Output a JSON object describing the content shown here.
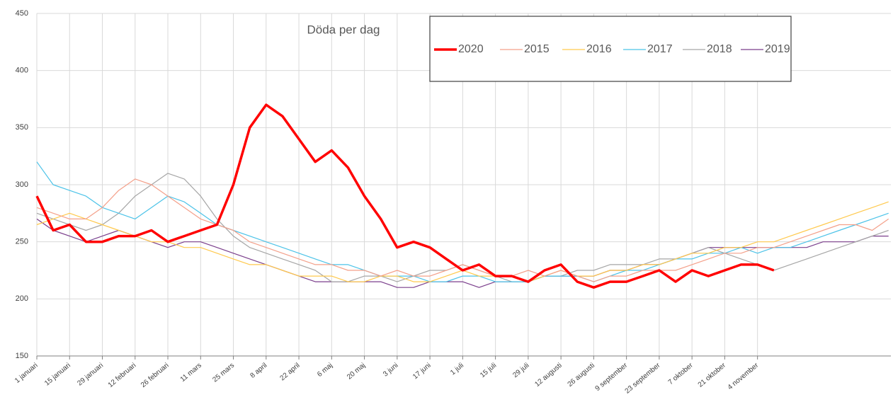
{
  "chart_data": {
    "type": "line",
    "title": "Döda per dag",
    "x": [
      1,
      8,
      15,
      22,
      29,
      36,
      43,
      50,
      57,
      64,
      71,
      78,
      85,
      92,
      99,
      106,
      113,
      120,
      127,
      134,
      141,
      148,
      155,
      162,
      169,
      176,
      183,
      190,
      197,
      204,
      211,
      218,
      225,
      232,
      239,
      246,
      253,
      260,
      267,
      274,
      281,
      288,
      295,
      302,
      309,
      316,
      323,
      330,
      337,
      344,
      351,
      358,
      365
    ],
    "xlim": [
      1,
      366
    ],
    "xticks": [
      {
        "value": 1,
        "label": "1 januari"
      },
      {
        "value": 15,
        "label": "15 januari"
      },
      {
        "value": 29,
        "label": "29 januari"
      },
      {
        "value": 43,
        "label": "12 februari"
      },
      {
        "value": 57,
        "label": "26 februari"
      },
      {
        "value": 71,
        "label": "11 mars"
      },
      {
        "value": 85,
        "label": "25 mars"
      },
      {
        "value": 99,
        "label": "8 april"
      },
      {
        "value": 113,
        "label": "22 april"
      },
      {
        "value": 127,
        "label": "6 maj"
      },
      {
        "value": 141,
        "label": "20 maj"
      },
      {
        "value": 155,
        "label": "3 juni"
      },
      {
        "value": 169,
        "label": "17 juni"
      },
      {
        "value": 183,
        "label": "1 juli"
      },
      {
        "value": 197,
        "label": "15 juli"
      },
      {
        "value": 211,
        "label": "29 juli"
      },
      {
        "value": 225,
        "label": "12 augusti"
      },
      {
        "value": 239,
        "label": "26 augusti"
      },
      {
        "value": 253,
        "label": "9 september"
      },
      {
        "value": 267,
        "label": "23 september"
      },
      {
        "value": 281,
        "label": "7 oktober"
      },
      {
        "value": 295,
        "label": "21 oktober"
      },
      {
        "value": 309,
        "label": "4 november"
      }
    ],
    "ylim": [
      150,
      450
    ],
    "yticks": [
      150,
      200,
      250,
      300,
      350,
      400,
      450
    ],
    "grid": true,
    "series": [
      {
        "name": "2020",
        "color": "#ff0000",
        "line_width": 3.5,
        "values": [
          290,
          260,
          265,
          250,
          250,
          255,
          255,
          260,
          250,
          255,
          260,
          265,
          300,
          350,
          370,
          360,
          340,
          320,
          330,
          315,
          290,
          270,
          245,
          250,
          245,
          235,
          225,
          230,
          220,
          220,
          215,
          225,
          230,
          215,
          210,
          215,
          215,
          220,
          225,
          215,
          225,
          220,
          225,
          230,
          230,
          225,
          null,
          null,
          null,
          null,
          null,
          null,
          null
        ]
      },
      {
        "name": "2015",
        "color": "#f4a08a",
        "line_width": 1.2,
        "values": [
          280,
          275,
          270,
          270,
          280,
          295,
          305,
          300,
          290,
          280,
          270,
          265,
          260,
          250,
          245,
          240,
          235,
          230,
          230,
          225,
          225,
          220,
          225,
          220,
          220,
          225,
          230,
          225,
          220,
          220,
          225,
          220,
          225,
          220,
          215,
          220,
          220,
          225,
          225,
          225,
          230,
          235,
          240,
          240,
          245,
          245,
          250,
          255,
          260,
          265,
          265,
          260,
          270
        ]
      },
      {
        "name": "2016",
        "color": "#ffc94d",
        "line_width": 1.2,
        "values": [
          265,
          270,
          275,
          270,
          265,
          260,
          255,
          250,
          250,
          245,
          245,
          240,
          235,
          230,
          230,
          225,
          220,
          220,
          220,
          215,
          215,
          220,
          220,
          215,
          215,
          220,
          225,
          220,
          220,
          220,
          215,
          220,
          225,
          220,
          220,
          225,
          225,
          230,
          230,
          235,
          240,
          240,
          245,
          245,
          250,
          250,
          255,
          260,
          265,
          270,
          275,
          280,
          285
        ]
      },
      {
        "name": "2017",
        "color": "#4cc3e8",
        "line_width": 1.2,
        "values": [
          320,
          300,
          295,
          290,
          280,
          275,
          270,
          280,
          290,
          285,
          275,
          265,
          260,
          255,
          250,
          245,
          240,
          235,
          230,
          230,
          225,
          220,
          220,
          220,
          215,
          215,
          220,
          220,
          215,
          215,
          215,
          220,
          220,
          220,
          215,
          220,
          225,
          225,
          230,
          235,
          235,
          240,
          240,
          245,
          240,
          245,
          245,
          250,
          255,
          260,
          265,
          270,
          275
        ]
      },
      {
        "name": "2018",
        "color": "#a6a6a6",
        "line_width": 1.2,
        "values": [
          275,
          270,
          265,
          260,
          265,
          275,
          290,
          300,
          310,
          305,
          290,
          270,
          255,
          245,
          240,
          235,
          230,
          225,
          215,
          215,
          220,
          220,
          215,
          220,
          225,
          225,
          230,
          225,
          220,
          215,
          215,
          220,
          220,
          225,
          225,
          230,
          230,
          230,
          235,
          235,
          240,
          245,
          240,
          235,
          230,
          225,
          230,
          235,
          240,
          245,
          250,
          255,
          260
        ]
      },
      {
        "name": "2019",
        "color": "#7b3f8c",
        "line_width": 1.2,
        "values": [
          270,
          260,
          255,
          250,
          255,
          260,
          255,
          250,
          245,
          250,
          250,
          245,
          240,
          235,
          230,
          225,
          220,
          215,
          215,
          215,
          215,
          215,
          210,
          210,
          215,
          215,
          215,
          210,
          215,
          215,
          215,
          220,
          220,
          220,
          220,
          225,
          225,
          230,
          230,
          235,
          240,
          245,
          245,
          245,
          245,
          245,
          245,
          245,
          250,
          250,
          250,
          255,
          255
        ]
      }
    ]
  }
}
